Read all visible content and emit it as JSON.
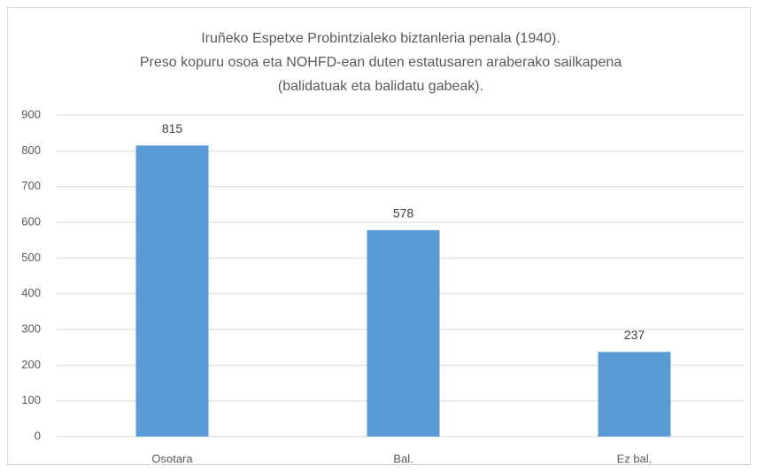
{
  "chart_data": {
    "type": "bar",
    "title": [
      "Iruñeko Espetxe Probintzialeko biztanleria penala (1940).",
      "Preso kopuru osoa eta NOHFD-ean duten estatusaren araberako sailkapena",
      "(balidatuak eta balidatu gabeak)."
    ],
    "categories": [
      "Osotara",
      "Bal.",
      "Ez bal."
    ],
    "values": [
      815,
      578,
      237
    ],
    "color": "#5b9bd5",
    "ylim": [
      0,
      900
    ],
    "yticks": [
      0,
      100,
      200,
      300,
      400,
      500,
      600,
      700,
      800,
      900
    ],
    "grid": true
  }
}
